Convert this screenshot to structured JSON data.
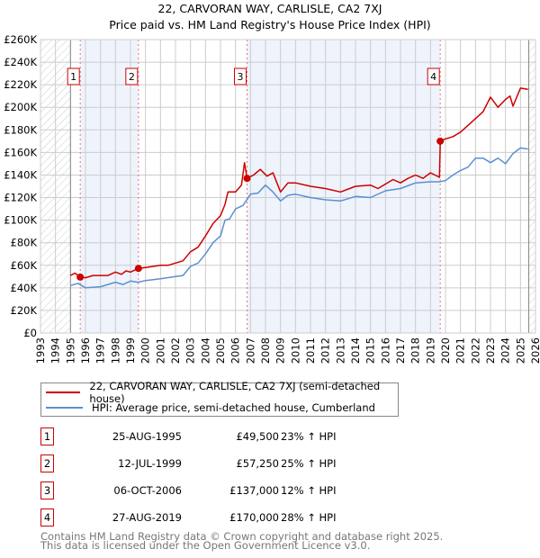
{
  "title": "22, CARVORAN WAY, CARLISLE, CA2 7XJ",
  "subtitle": "Price paid vs. HM Land Registry's House Price Index (HPI)",
  "colors": {
    "property": "#cc0000",
    "hpi": "#5b8fd0",
    "shade": "#eef3fc",
    "grid": "#cccccc"
  },
  "chart_data": {
    "type": "line",
    "title": "22, CARVORAN WAY, CARLISLE, CA2 7XJ — Price paid vs. HM Land Registry's House Price Index (HPI)",
    "xlim": [
      1993,
      2026
    ],
    "ylim": [
      0,
      260000
    ],
    "x_ticks": [
      "1993",
      "1994",
      "1995",
      "1996",
      "1997",
      "1998",
      "1999",
      "2000",
      "2001",
      "2002",
      "2003",
      "2004",
      "2005",
      "2006",
      "2007",
      "2008",
      "2009",
      "2010",
      "2011",
      "2012",
      "2013",
      "2014",
      "2015",
      "2016",
      "2017",
      "2018",
      "2019",
      "2020",
      "2021",
      "2022",
      "2023",
      "2024",
      "2025",
      "2026"
    ],
    "y_ticks": [
      "£0",
      "£20K",
      "£40K",
      "£60K",
      "£80K",
      "£100K",
      "£120K",
      "£140K",
      "£160K",
      "£180K",
      "£200K",
      "£220K",
      "£240K",
      "£260K"
    ],
    "grid": true,
    "data_range": [
      1995,
      2025.55
    ],
    "legend_placement": "below",
    "series": [
      {
        "name": "22, CARVORAN WAY, CARLISLE, CA2 7XJ (semi-detached house)",
        "x": [
          1995,
          1995.3,
          1995.65,
          1996,
          1996.5,
          1997.5,
          1998,
          1998.4,
          1998.7,
          1999,
          1999.53,
          2000,
          2000.5,
          2001,
          2001.5,
          2002,
          2002.5,
          2003,
          2003.5,
          2004,
          2004.5,
          2005,
          2005.3,
          2005.5,
          2006,
          2006.4,
          2006.6,
          2006.77,
          2007.2,
          2007.65,
          2008.1,
          2008.5,
          2009,
          2009.5,
          2010,
          2011,
          2012,
          2013,
          2014,
          2015,
          2015.5,
          2016.5,
          2017,
          2017.5,
          2018,
          2018.5,
          2019,
          2019.6,
          2019.65,
          2020,
          2020.5,
          2021,
          2021.5,
          2022,
          2022.5,
          2023,
          2023.5,
          2024,
          2024.3,
          2024.5,
          2025,
          2025.5
        ],
        "y": [
          51,
          53,
          49.5,
          49,
          51,
          51,
          54,
          52,
          55,
          54,
          57.25,
          58,
          59,
          60,
          60,
          62,
          64,
          72,
          76,
          86,
          97,
          104,
          114,
          125,
          125,
          131,
          151,
          137,
          140,
          145,
          139,
          142,
          125,
          133,
          133,
          130,
          128,
          125,
          130,
          131,
          128,
          136,
          133,
          137,
          140,
          137,
          142,
          138,
          170,
          172,
          174,
          178,
          184,
          190,
          196,
          209,
          200,
          207,
          210,
          201,
          217,
          216
        ]
      },
      {
        "name": "HPI: Average price, semi-detached house, Cumberland",
        "x": [
          1995,
          1995.5,
          1996,
          1997,
          1998,
          1998.5,
          1999,
          1999.5,
          2000,
          2001,
          2002,
          2002.5,
          2003,
          2003.5,
          2004,
          2004.5,
          2005,
          2005.3,
          2005.6,
          2006,
          2006.5,
          2007,
          2007.5,
          2008,
          2008.5,
          2009,
          2009.5,
          2010,
          2011,
          2012,
          2013,
          2014,
          2015,
          2016,
          2017,
          2018,
          2019,
          2019.6,
          2020,
          2020.5,
          2021,
          2021.5,
          2022,
          2022.5,
          2023,
          2023.5,
          2024,
          2024.5,
          2025,
          2025.5
        ],
        "y": [
          42,
          44,
          40,
          41,
          45,
          43,
          46,
          45,
          46.5,
          48,
          50,
          51,
          59,
          62,
          70,
          80,
          86,
          100,
          101,
          110,
          113,
          123,
          124,
          131,
          125,
          117,
          122,
          123,
          120,
          118,
          117,
          121,
          120,
          126,
          128,
          133,
          134,
          134,
          135,
          140,
          144,
          147,
          155,
          155,
          151,
          155,
          150,
          159,
          164,
          163
        ]
      }
    ],
    "y_units": "thousand GBP",
    "sales": [
      {
        "label": "1",
        "x": 1995.65,
        "y": 49.5
      },
      {
        "label": "2",
        "x": 1999.53,
        "y": 57.25
      },
      {
        "label": "3",
        "x": 2006.77,
        "y": 137
      },
      {
        "label": "4",
        "x": 2019.65,
        "y": 170
      }
    ]
  },
  "legend": {
    "property": "22, CARVORAN WAY, CARLISLE, CA2 7XJ (semi-detached house)",
    "hpi": "HPI: Average price, semi-detached house, Cumberland"
  },
  "transactions": [
    {
      "num": "1",
      "date": "25-AUG-1995",
      "price": "£49,500",
      "hpi": "23% ↑ HPI"
    },
    {
      "num": "2",
      "date": "12-JUL-1999",
      "price": "£57,250",
      "hpi": "25% ↑ HPI"
    },
    {
      "num": "3",
      "date": "06-OCT-2006",
      "price": "£137,000",
      "hpi": "12% ↑ HPI"
    },
    {
      "num": "4",
      "date": "27-AUG-2019",
      "price": "£170,000",
      "hpi": "28% ↑ HPI"
    }
  ],
  "footer": {
    "line1": "Contains HM Land Registry data © Crown copyright and database right 2025.",
    "line2": "This data is licensed under the Open Government Licence v3.0."
  }
}
